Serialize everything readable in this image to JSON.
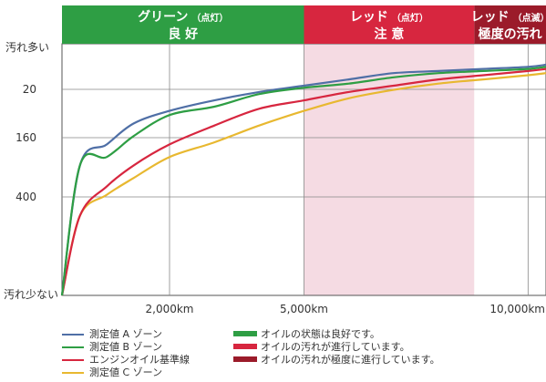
{
  "chart_data": {
    "type": "line",
    "bands": [
      {
        "title": "グリーン",
        "small": "（点灯）",
        "sub": "良 好",
        "color": "#2e9e44",
        "bg": "#ffffff",
        "x0": 0,
        "x1": 5000
      },
      {
        "title": "レッド",
        "small": "（点灯）",
        "sub": "注 意",
        "color": "#d7263f",
        "bg": "#f5dbe3",
        "x0": 5000,
        "x1": 8800
      },
      {
        "title": "レッド",
        "small": "（点滅）",
        "sub": "極度の汚れ",
        "color": "#9b1b2a",
        "bg": "#ffffff",
        "x0": 8800,
        "x1": 10400
      }
    ],
    "y_axis": {
      "top_label": "汚れ多い",
      "bottom_label": "汚れ少ない",
      "ticks": [
        {
          "label": "20",
          "value": 20
        },
        {
          "label": "160",
          "value": 160
        },
        {
          "label": "400",
          "value": 400
        }
      ]
    },
    "x_axis": {
      "ticks": [
        {
          "label": "2,000km",
          "value": 2000
        },
        {
          "label": "5,000km",
          "value": 5000
        },
        {
          "label": "10,000km",
          "value": 10000
        }
      ],
      "range": [
        -400,
        10400
      ]
    },
    "series": [
      {
        "name": "測定値 A ゾーン",
        "color": "#4f6fa6",
        "points": [
          [
            -400,
            0
          ],
          [
            0,
            62
          ],
          [
            600,
            72
          ],
          [
            1200,
            82
          ],
          [
            2000,
            88
          ],
          [
            3000,
            93
          ],
          [
            4000,
            97
          ],
          [
            5000,
            100
          ],
          [
            6000,
            103
          ],
          [
            7000,
            106
          ],
          [
            8000,
            107
          ],
          [
            9000,
            108
          ],
          [
            10000,
            109
          ],
          [
            10400,
            110
          ]
        ]
      },
      {
        "name": "測定値 B ゾーン",
        "color": "#2e9e44",
        "points": [
          [
            -400,
            0
          ],
          [
            0,
            62
          ],
          [
            600,
            66
          ],
          [
            1200,
            76
          ],
          [
            2000,
            86
          ],
          [
            3000,
            90
          ],
          [
            4000,
            96
          ],
          [
            5000,
            99
          ],
          [
            6000,
            101
          ],
          [
            7000,
            104
          ],
          [
            8000,
            106
          ],
          [
            9000,
            107
          ],
          [
            10000,
            108
          ],
          [
            10400,
            109
          ]
        ]
      },
      {
        "name": "エンジンオイル基準線",
        "color": "#d7263f",
        "points": [
          [
            -400,
            0
          ],
          [
            0,
            38
          ],
          [
            600,
            52
          ],
          [
            1200,
            62
          ],
          [
            2000,
            72
          ],
          [
            3000,
            81
          ],
          [
            4000,
            89
          ],
          [
            5000,
            93
          ],
          [
            6000,
            97
          ],
          [
            7000,
            100
          ],
          [
            8000,
            103
          ],
          [
            9000,
            105
          ],
          [
            10000,
            107
          ],
          [
            10400,
            108
          ]
        ]
      },
      {
        "name": "測定値 C ゾーン",
        "color": "#e8b830",
        "points": [
          [
            -400,
            0
          ],
          [
            0,
            38
          ],
          [
            600,
            48
          ],
          [
            1200,
            56
          ],
          [
            2000,
            66
          ],
          [
            3000,
            73
          ],
          [
            4000,
            81
          ],
          [
            5000,
            88
          ],
          [
            6000,
            94
          ],
          [
            7000,
            98
          ],
          [
            8000,
            101
          ],
          [
            9000,
            103
          ],
          [
            10000,
            105
          ],
          [
            10400,
            106
          ]
        ]
      }
    ]
  },
  "legend": {
    "series_items": [
      {
        "label": "測定値 A ゾーン",
        "color": "#4f6fa6"
      },
      {
        "label": "測定値 B ゾーン",
        "color": "#2e9e44"
      },
      {
        "label": "エンジンオイル基準線",
        "color": "#d7263f"
      },
      {
        "label": "測定値 C ゾーン",
        "color": "#e8b830"
      }
    ],
    "status_items": [
      {
        "label": "オイルの状態は良好です。",
        "color": "#2e9e44"
      },
      {
        "label": "オイルの汚れが進行しています。",
        "color": "#d7263f"
      },
      {
        "label": "オイルの汚れが極度に進行しています。",
        "color": "#9b1b2a"
      }
    ]
  }
}
